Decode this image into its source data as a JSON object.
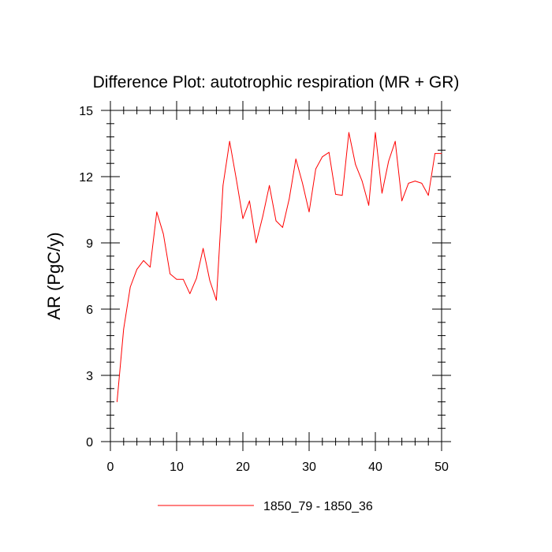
{
  "chart_data": {
    "type": "line",
    "title": "Difference Plot: autotrophic respiration (MR + GR)",
    "xlabel": "",
    "ylabel": "AR  (PgC/y)",
    "xlim": [
      0,
      50
    ],
    "ylim": [
      0,
      15
    ],
    "x_ticks": [
      0,
      10,
      20,
      30,
      40,
      50
    ],
    "y_ticks": [
      0,
      3,
      6,
      9,
      12,
      15
    ],
    "x_minor_step": 2,
    "y_minor_step": 0.6,
    "legend_position": "bottom-center",
    "series": [
      {
        "name": "1850_79 - 1850_36",
        "color": "#ff0000",
        "x": [
          1,
          2,
          3,
          4,
          5,
          6,
          7,
          8,
          9,
          10,
          11,
          12,
          13,
          14,
          15,
          16,
          17,
          18,
          19,
          20,
          21,
          22,
          23,
          24,
          25,
          26,
          27,
          28,
          29,
          30,
          31,
          32,
          33,
          34,
          35,
          36,
          37,
          38,
          39,
          40,
          41,
          42,
          43,
          44,
          45,
          46,
          47,
          48,
          49,
          50
        ],
        "values": [
          1.8,
          5.1,
          7.0,
          7.8,
          8.2,
          7.9,
          10.4,
          9.4,
          7.6,
          7.35,
          7.35,
          6.7,
          7.4,
          8.75,
          7.3,
          6.4,
          11.6,
          13.6,
          11.9,
          10.1,
          10.9,
          9.0,
          10.2,
          11.6,
          10.0,
          9.7,
          11.0,
          12.8,
          11.7,
          10.4,
          12.35,
          12.9,
          13.1,
          11.2,
          11.15,
          14.0,
          12.55,
          11.8,
          10.7,
          14.0,
          11.25,
          12.7,
          13.6,
          10.9,
          11.7,
          11.8,
          11.7,
          11.15,
          13.05,
          13.05
        ]
      }
    ]
  }
}
